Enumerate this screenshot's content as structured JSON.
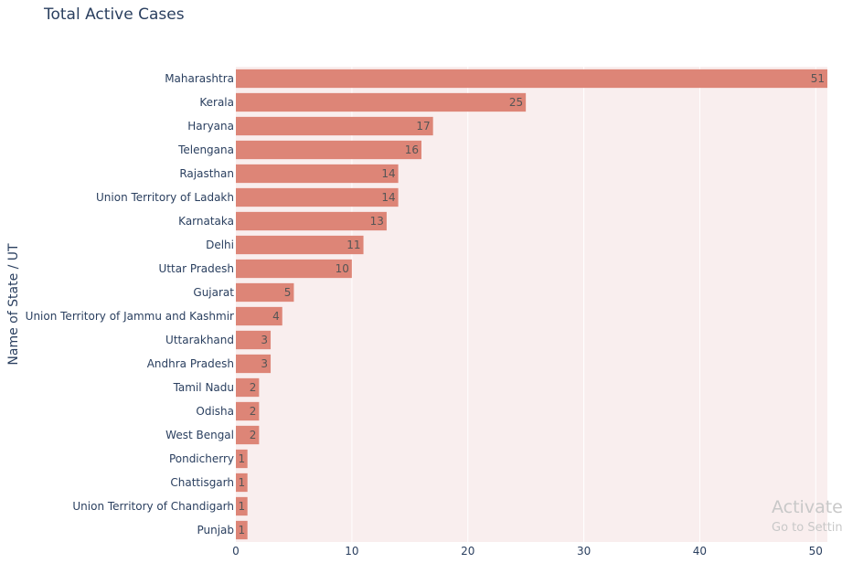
{
  "chart_data": {
    "type": "bar",
    "orientation": "horizontal",
    "title": "Total Active Cases",
    "xlabel": "",
    "ylabel": "Name of State / UT",
    "xlim": [
      0,
      51
    ],
    "xticks": [
      0,
      10,
      20,
      30,
      40,
      50
    ],
    "grid": true,
    "categories": [
      "Maharashtra",
      "Kerala",
      "Haryana",
      "Telengana",
      "Rajasthan",
      "Union Territory of Ladakh",
      "Karnataka",
      "Delhi",
      "Uttar Pradesh",
      "Gujarat",
      "Union Territory of Jammu and Kashmir",
      "Uttarakhand",
      "Andhra Pradesh",
      "Tamil Nadu",
      "Odisha",
      "West Bengal",
      "Pondicherry",
      "Chattisgarh",
      "Union Territory of Chandigarh",
      "Punjab"
    ],
    "values": [
      51,
      25,
      17,
      16,
      14,
      14,
      13,
      11,
      10,
      5,
      4,
      3,
      3,
      2,
      2,
      2,
      1,
      1,
      1,
      1
    ],
    "colors": {
      "bar": "#dd8577",
      "plot_background": "#f9eeee",
      "gridline": "#ffffff",
      "text": "#2a3f5f"
    }
  },
  "watermark": {
    "line1": "Activate",
    "line2": "Go to Settin"
  }
}
